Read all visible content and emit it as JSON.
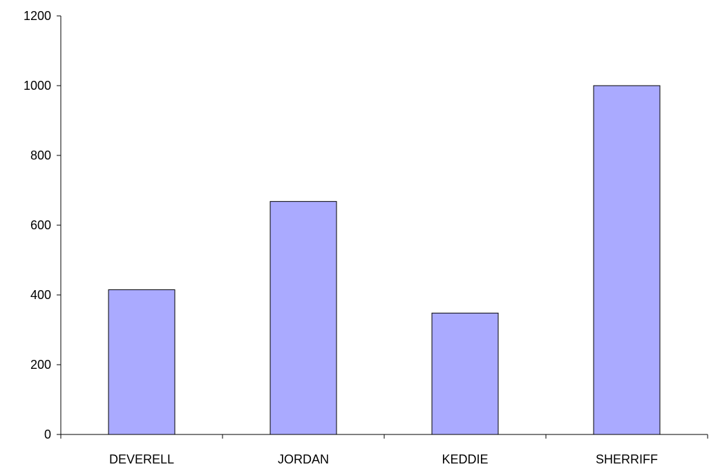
{
  "chart_data": {
    "type": "bar",
    "title": "",
    "xlabel": "",
    "ylabel": "",
    "categories": [
      "DEVERELL",
      "JORDAN",
      "KEDDIE",
      "SHERRIFF"
    ],
    "values": [
      415,
      668,
      348,
      1000
    ],
    "ylim": [
      0,
      1200
    ],
    "yticks": [
      0,
      200,
      400,
      600,
      800,
      1000,
      1200
    ],
    "grid": false,
    "legend": "none",
    "bar_color": "#aaaaff",
    "axis_color": "#000000"
  }
}
